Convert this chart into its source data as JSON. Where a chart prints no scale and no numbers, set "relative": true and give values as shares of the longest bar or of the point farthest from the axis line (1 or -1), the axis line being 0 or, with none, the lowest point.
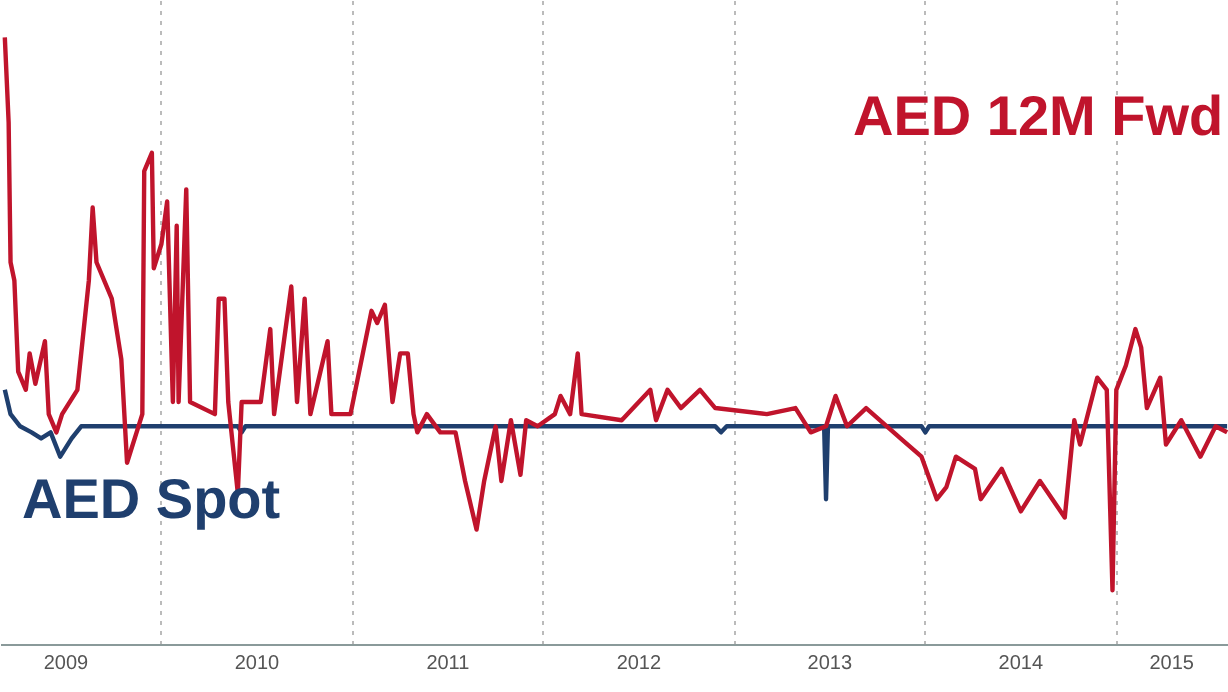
{
  "chart_data": {
    "type": "line",
    "relative": true,
    "legend": false,
    "grid": "x",
    "line_style": "solid",
    "marker": "none",
    "xlim": [
      2009.16,
      2015.59
    ],
    "xticks": [
      {
        "value": 2009.5,
        "label": "2009"
      },
      {
        "value": 2010,
        "label": null
      },
      {
        "value": 2010.5,
        "label": "2010"
      },
      {
        "value": 2011,
        "label": null
      },
      {
        "value": 2011.5,
        "label": "2011"
      },
      {
        "value": 2012,
        "label": null
      },
      {
        "value": 2012.5,
        "label": "2012"
      },
      {
        "value": 2013,
        "label": null
      },
      {
        "value": 2013.5,
        "label": "2013"
      },
      {
        "value": 2014,
        "label": null
      },
      {
        "value": 2014.5,
        "label": "2014"
      },
      {
        "value": 2015,
        "label": null
      },
      {
        "value": 2015.29,
        "label": "2015"
      }
    ],
    "series": [
      {
        "name": "AED Spot",
        "color": "#1f3f6e",
        "x": [
          2009.18,
          2009.21,
          2009.26,
          2009.32,
          2009.37,
          2009.42,
          2009.47,
          2009.53,
          2009.58,
          2010.4,
          2010.42,
          2010.44,
          2012.9,
          2012.93,
          2012.96,
          2013.47,
          2013.48,
          2013.49,
          2013.98,
          2014.0,
          2014.02,
          2015.58
        ],
        "values": [
          0.42,
          0.38,
          0.36,
          0.35,
          0.34,
          0.35,
          0.31,
          0.34,
          0.36,
          0.36,
          0.35,
          0.36,
          0.36,
          0.35,
          0.36,
          0.36,
          0.24,
          0.36,
          0.36,
          0.35,
          0.36,
          0.36
        ]
      },
      {
        "name": "AED 12M Fwd",
        "color": "#c0142c",
        "x": [
          2009.18,
          2009.2,
          2009.21,
          2009.23,
          2009.25,
          2009.29,
          2009.31,
          2009.34,
          2009.39,
          2009.41,
          2009.45,
          2009.48,
          2009.56,
          2009.62,
          2009.64,
          2009.66,
          2009.74,
          2009.79,
          2009.82,
          2009.87,
          2009.9,
          2009.91,
          2009.95,
          2009.96,
          2010.0,
          2010.03,
          2010.06,
          2010.08,
          2010.09,
          2010.13,
          2010.15,
          2010.28,
          2010.3,
          2010.33,
          2010.35,
          2010.4,
          2010.42,
          2010.52,
          2010.57,
          2010.59,
          2010.68,
          2010.71,
          2010.75,
          2010.78,
          2010.87,
          2010.89,
          2010.99,
          2011.1,
          2011.13,
          2011.17,
          2011.21,
          2011.25,
          2011.29,
          2011.32,
          2011.34,
          2011.39,
          2011.46,
          2011.54,
          2011.59,
          2011.65,
          2011.69,
          2011.75,
          2011.78,
          2011.83,
          2011.88,
          2011.91,
          2011.97,
          2012.06,
          2012.09,
          2012.14,
          2012.18,
          2012.2,
          2012.41,
          2012.56,
          2012.59,
          2012.65,
          2012.72,
          2012.82,
          2012.9,
          2013.17,
          2013.32,
          2013.4,
          2013.48,
          2013.53,
          2013.59,
          2013.69,
          2013.87,
          2013.98,
          2014.06,
          2014.11,
          2014.16,
          2014.26,
          2014.29,
          2014.4,
          2014.5,
          2014.6,
          2014.73,
          2014.78,
          2014.81,
          2014.9,
          2014.95,
          2014.98,
          2015.0,
          2015.05,
          2015.1,
          2015.13,
          2015.16,
          2015.23,
          2015.26,
          2015.34,
          2015.44,
          2015.52,
          2015.58
        ],
        "values": [
          1.0,
          0.86,
          0.63,
          0.6,
          0.45,
          0.42,
          0.48,
          0.43,
          0.5,
          0.38,
          0.35,
          0.38,
          0.42,
          0.6,
          0.72,
          0.63,
          0.57,
          0.47,
          0.3,
          0.35,
          0.38,
          0.78,
          0.81,
          0.62,
          0.66,
          0.73,
          0.4,
          0.69,
          0.4,
          0.75,
          0.4,
          0.38,
          0.57,
          0.57,
          0.4,
          0.25,
          0.4,
          0.4,
          0.52,
          0.38,
          0.59,
          0.4,
          0.57,
          0.38,
          0.5,
          0.38,
          0.38,
          0.55,
          0.53,
          0.56,
          0.4,
          0.48,
          0.48,
          0.38,
          0.35,
          0.38,
          0.35,
          0.35,
          0.27,
          0.19,
          0.27,
          0.36,
          0.27,
          0.37,
          0.28,
          0.37,
          0.36,
          0.38,
          0.41,
          0.38,
          0.48,
          0.38,
          0.37,
          0.42,
          0.37,
          0.42,
          0.39,
          0.42,
          0.39,
          0.38,
          0.39,
          0.35,
          0.36,
          0.41,
          0.36,
          0.39,
          0.34,
          0.31,
          0.24,
          0.26,
          0.31,
          0.29,
          0.24,
          0.29,
          0.22,
          0.27,
          0.21,
          0.37,
          0.33,
          0.44,
          0.42,
          0.09,
          0.42,
          0.46,
          0.52,
          0.49,
          0.39,
          0.44,
          0.33,
          0.37,
          0.31,
          0.36,
          0.35
        ]
      }
    ]
  }
}
